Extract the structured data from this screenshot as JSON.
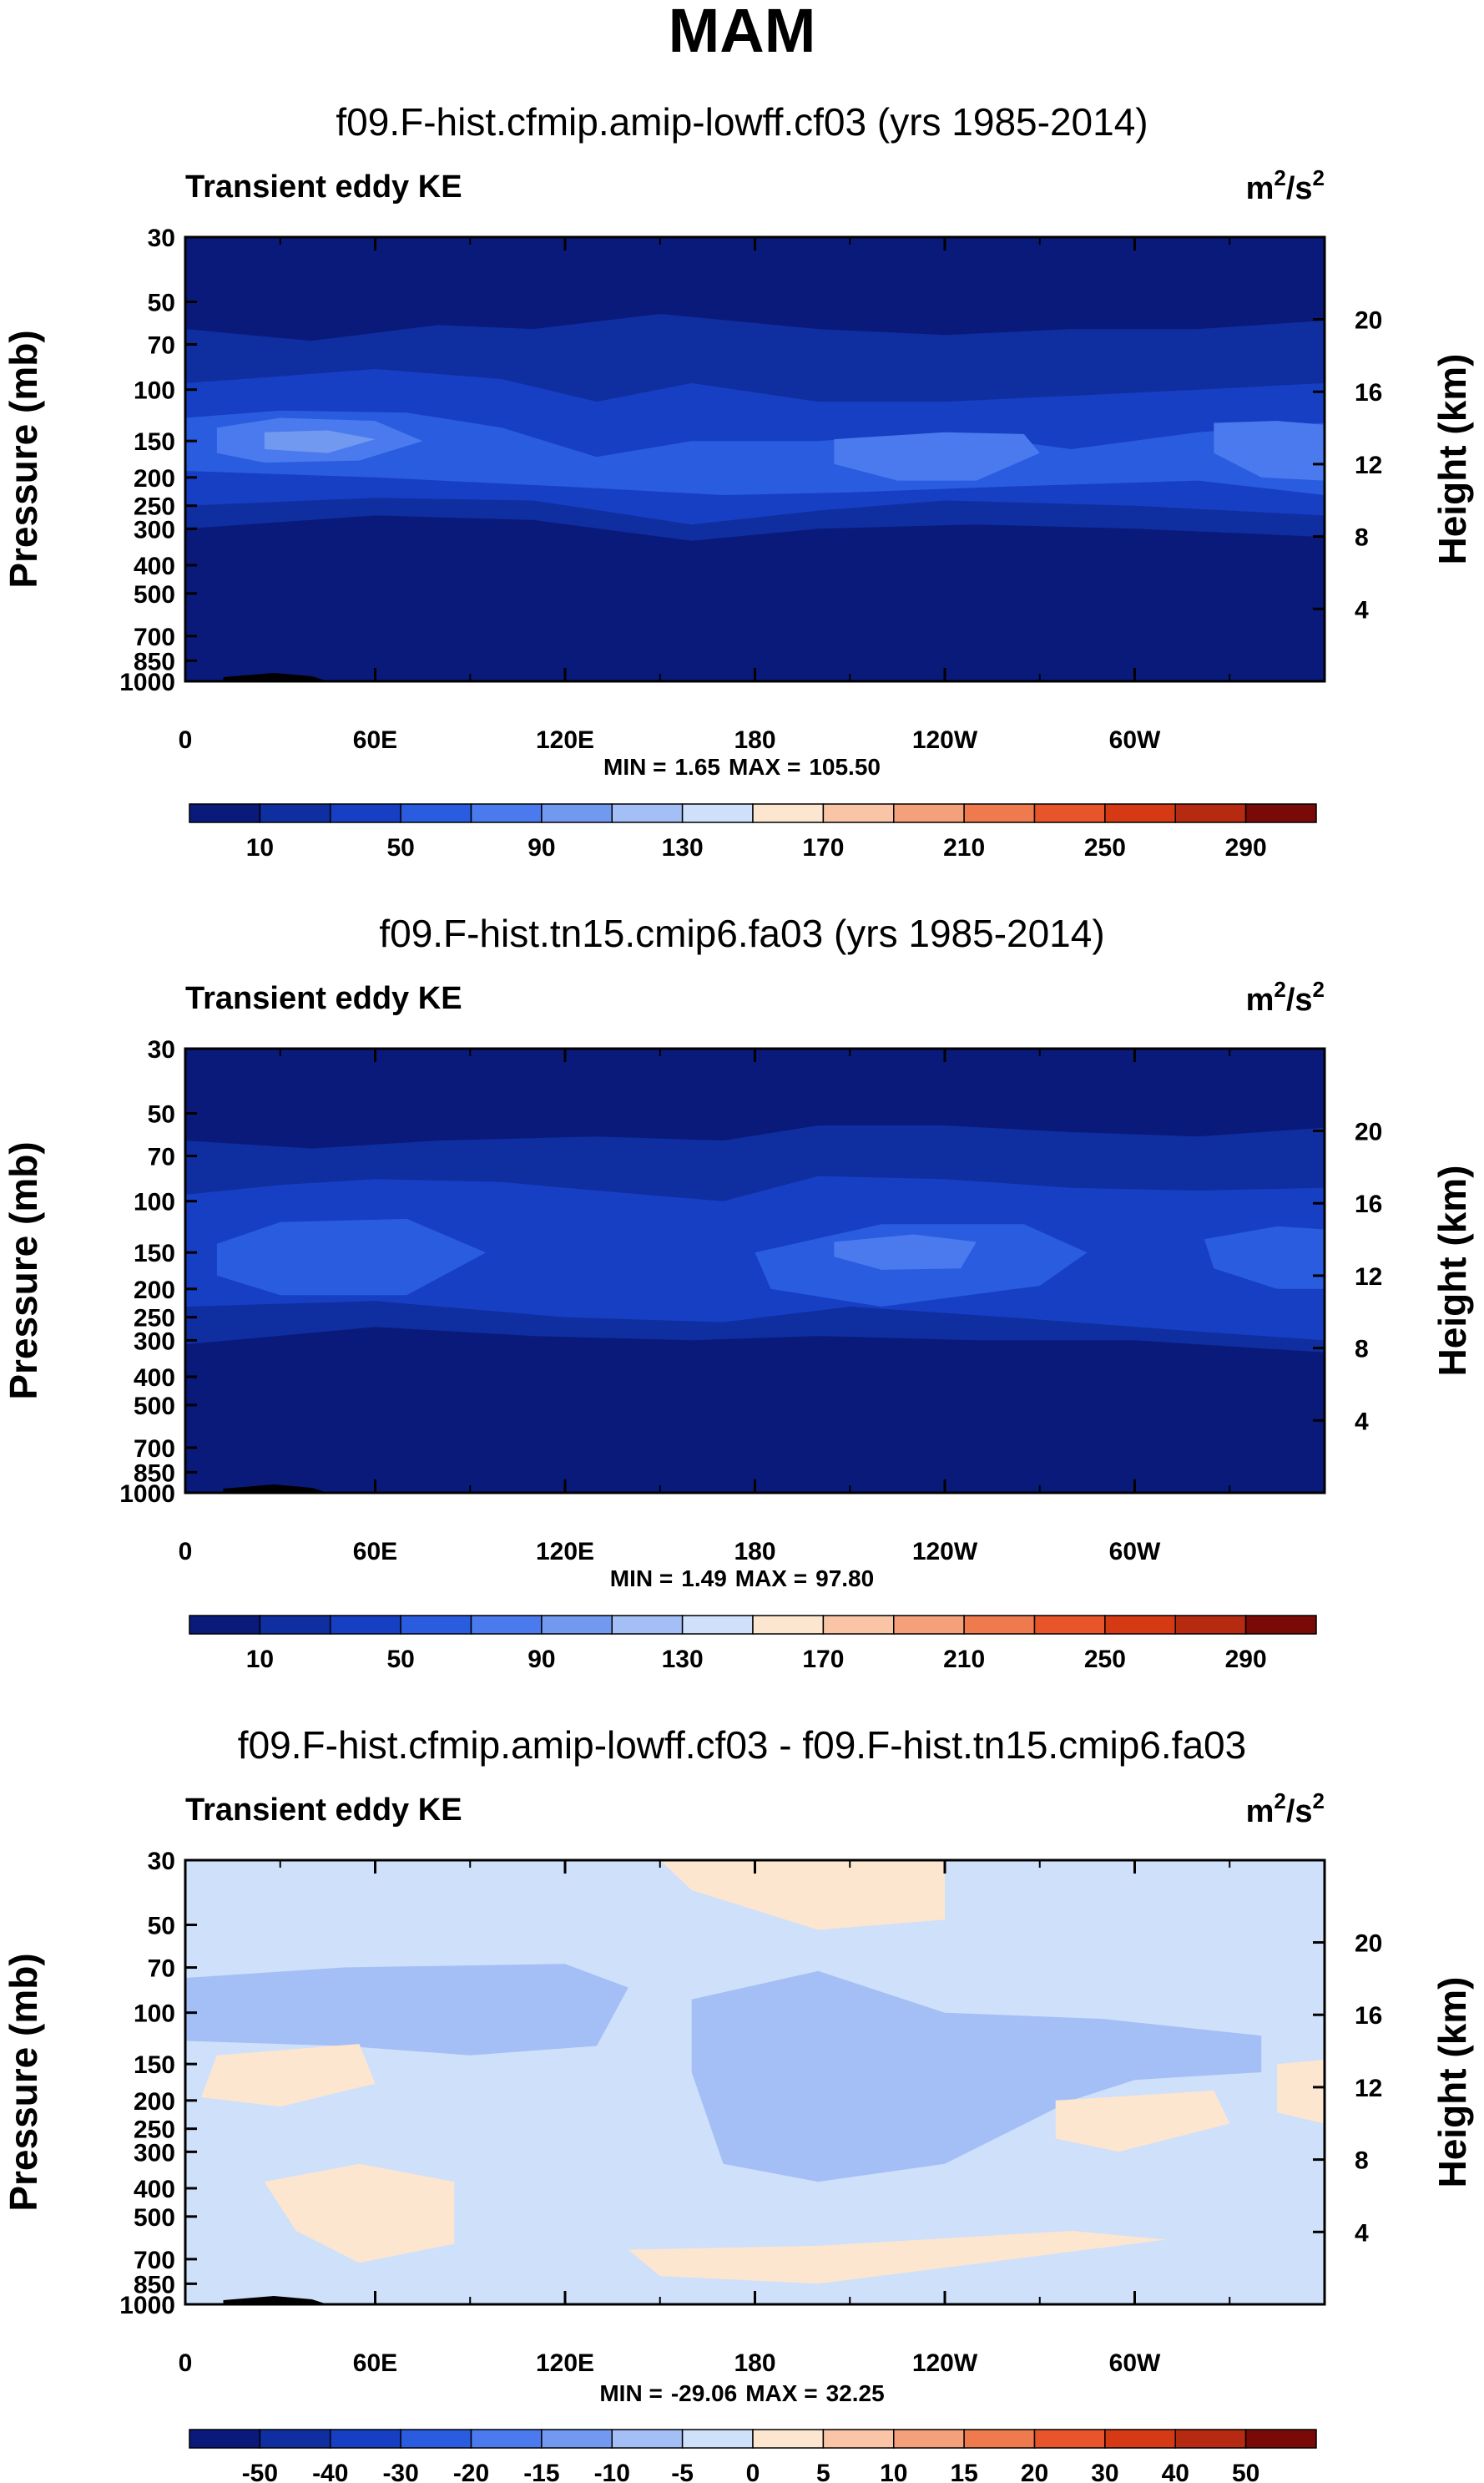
{
  "title": "MAM",
  "chart_data": [
    {
      "type": "contour",
      "title": "f09.F-hist.cfmip.amip-lowff.cf03 (yrs 1985-2014)",
      "subtitle": "Transient eddy KE",
      "units_base": "m",
      "units_sup1": "2",
      "units_mid": "/s",
      "units_sup2": "2",
      "xlabel": "",
      "ylabel": "Pressure (mb)",
      "y2label": "Height (km)",
      "x_ticks": [
        "0",
        "60E",
        "120E",
        "180",
        "120W",
        "60W"
      ],
      "y_ticks": [
        "30",
        "50",
        "70",
        "100",
        "150",
        "200",
        "250",
        "300",
        "400",
        "500",
        "700",
        "850",
        "1000"
      ],
      "y2_ticks": [
        "20",
        "16",
        "12",
        "8",
        "4"
      ],
      "min_label": "MIN =",
      "min": "1.65",
      "max_label": "MAX =",
      "max": "105.50",
      "colorbar_levels": [
        "10",
        "50",
        "90",
        "130",
        "170",
        "210",
        "250",
        "290"
      ],
      "colors": [
        "#0a1a7a",
        "#0f2ea0",
        "#173fc4",
        "#2a5ce0",
        "#4a7aee",
        "#7299f0",
        "#a4bff5",
        "#cfe0fa",
        "#fde6d0",
        "#f9c5a6",
        "#f4a07a",
        "#ef7a4e",
        "#e9552b",
        "#d63a14",
        "#b52a10",
        "#7a0a08"
      ]
    },
    {
      "type": "contour",
      "title": "f09.F-hist.tn15.cmip6.fa03 (yrs 1985-2014)",
      "subtitle": "Transient eddy KE",
      "units_base": "m",
      "units_sup1": "2",
      "units_mid": "/s",
      "units_sup2": "2",
      "xlabel": "",
      "ylabel": "Pressure (mb)",
      "y2label": "Height (km)",
      "x_ticks": [
        "0",
        "60E",
        "120E",
        "180",
        "120W",
        "60W"
      ],
      "y_ticks": [
        "30",
        "50",
        "70",
        "100",
        "150",
        "200",
        "250",
        "300",
        "400",
        "500",
        "700",
        "850",
        "1000"
      ],
      "y2_ticks": [
        "20",
        "16",
        "12",
        "8",
        "4"
      ],
      "min_label": "MIN =",
      "min": "1.49",
      "max_label": "MAX =",
      "max": "97.80",
      "colorbar_levels": [
        "10",
        "50",
        "90",
        "130",
        "170",
        "210",
        "250",
        "290"
      ],
      "colors": [
        "#0a1a7a",
        "#0f2ea0",
        "#173fc4",
        "#2a5ce0",
        "#4a7aee",
        "#7299f0",
        "#a4bff5",
        "#cfe0fa",
        "#fde6d0",
        "#f9c5a6",
        "#f4a07a",
        "#ef7a4e",
        "#e9552b",
        "#d63a14",
        "#b52a10",
        "#7a0a08"
      ]
    },
    {
      "type": "contour",
      "title": "f09.F-hist.cfmip.amip-lowff.cf03 - f09.F-hist.tn15.cmip6.fa03",
      "subtitle": "Transient eddy KE",
      "units_base": "m",
      "units_sup1": "2",
      "units_mid": "/s",
      "units_sup2": "2",
      "xlabel": "",
      "ylabel": "Pressure (mb)",
      "y2label": "Height (km)",
      "x_ticks": [
        "0",
        "60E",
        "120E",
        "180",
        "120W",
        "60W"
      ],
      "y_ticks": [
        "30",
        "50",
        "70",
        "100",
        "150",
        "200",
        "250",
        "300",
        "400",
        "500",
        "700",
        "850",
        "1000"
      ],
      "y2_ticks": [
        "20",
        "16",
        "12",
        "8",
        "4"
      ],
      "min_label": "MIN =",
      "min": "-29.06",
      "max_label": "MAX =",
      "max": "32.25",
      "colorbar_levels": [
        "-50",
        "-40",
        "-30",
        "-20",
        "-15",
        "-10",
        "-5",
        "0",
        "5",
        "10",
        "15",
        "20",
        "30",
        "40",
        "50"
      ],
      "colors": [
        "#0a1a7a",
        "#0f2ea0",
        "#173fc4",
        "#2a5ce0",
        "#4a7aee",
        "#7299f0",
        "#a4bff5",
        "#cfe0fa",
        "#fde6d0",
        "#f9c5a6",
        "#f4a07a",
        "#ef7a4e",
        "#e9552b",
        "#d63a14",
        "#b52a10",
        "#7a0a08"
      ]
    }
  ]
}
